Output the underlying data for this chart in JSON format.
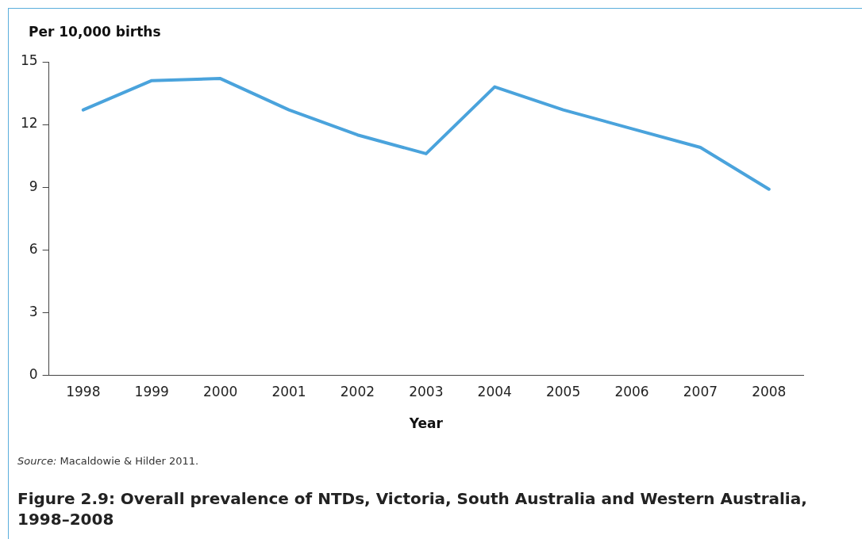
{
  "chart_data": {
    "type": "line",
    "title": "Figure 2.9: Overall prevalence of NTDs, Victoria, South Australia and Western Australia, 1998–2008",
    "xlabel": "Year",
    "ylabel": "Per 10,000 births",
    "categories": [
      "1998",
      "1999",
      "2000",
      "2001",
      "2002",
      "2003",
      "2004",
      "2005",
      "2006",
      "2007",
      "2008"
    ],
    "series": [
      {
        "color": "#4aa3dc",
        "values": [
          12.7,
          14.1,
          14.2,
          12.7,
          11.5,
          10.6,
          13.8,
          12.7,
          11.8,
          10.9,
          8.9
        ]
      }
    ],
    "ylim": [
      0,
      15
    ],
    "yticks": [
      0,
      3,
      6,
      9,
      12,
      15
    ],
    "grid": false,
    "legend": false,
    "marker": "none",
    "line_style": "solid",
    "annotations": [
      "Source: Macaldowie & Hilder 2011."
    ]
  }
}
